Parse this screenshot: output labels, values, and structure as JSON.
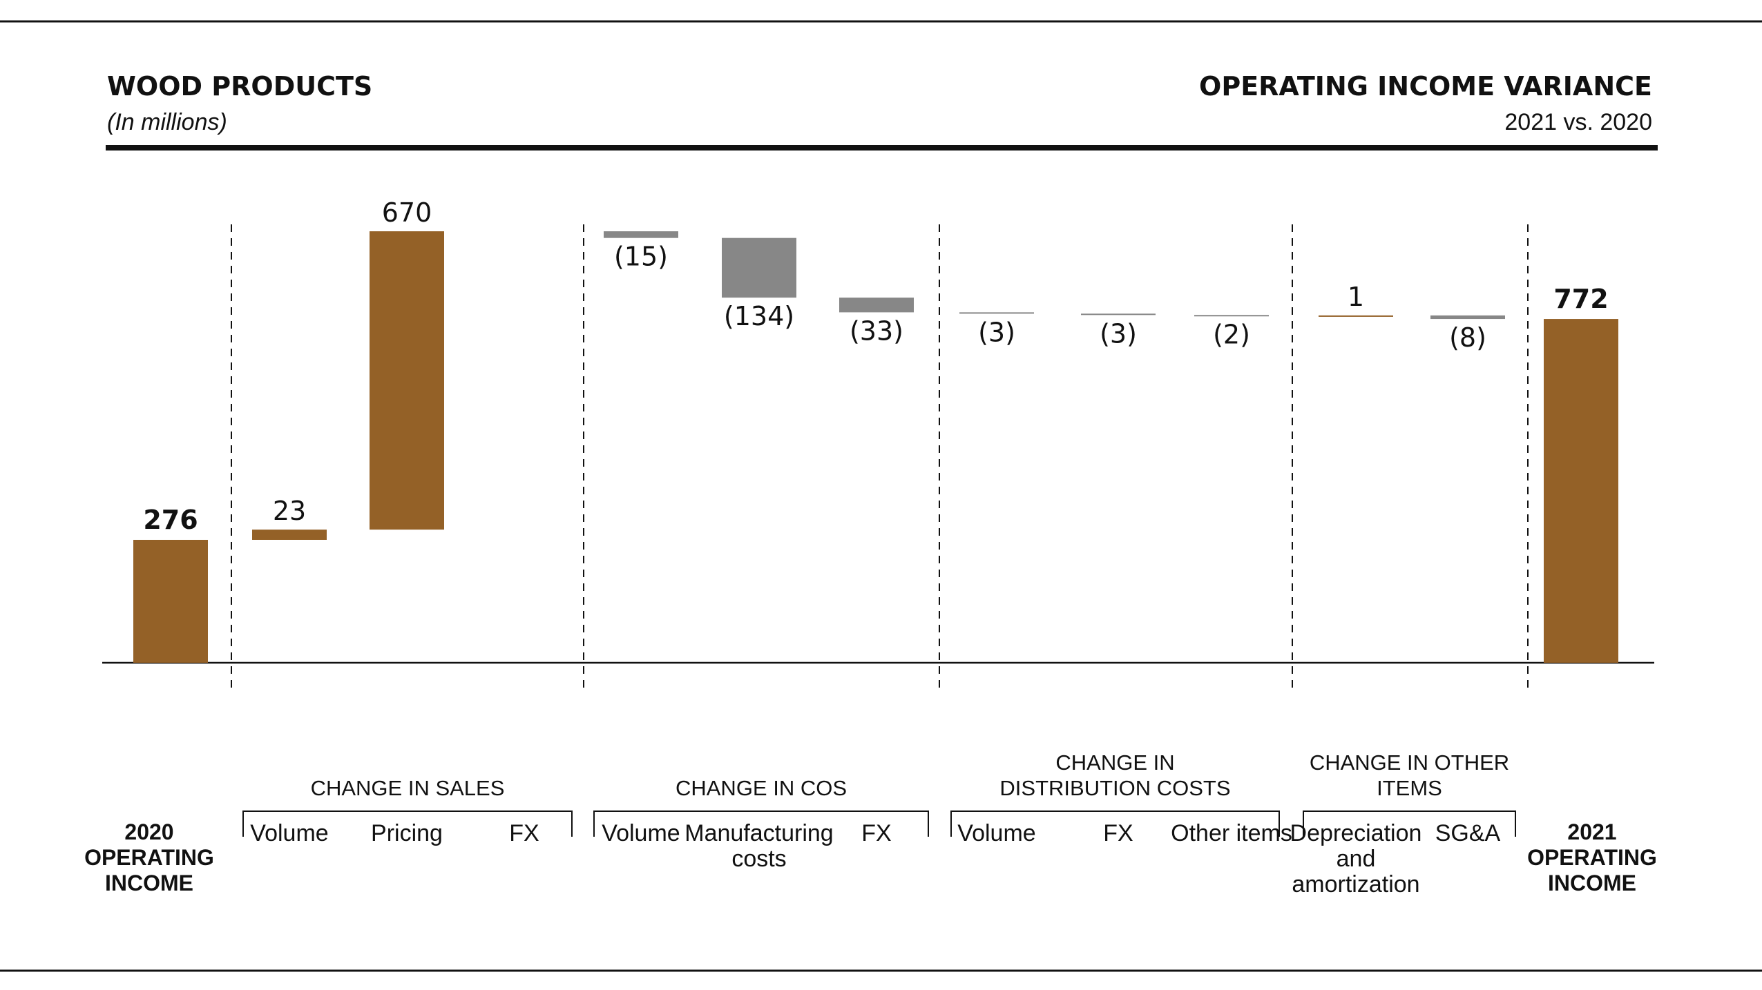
{
  "header": {
    "title": "WOOD PRODUCTS",
    "units": "(In millions)",
    "right_title": "OPERATING INCOME VARIANCE",
    "right_subtitle": "2021 vs. 2020"
  },
  "colors": {
    "positive": "#946127",
    "negative": "#878787",
    "rule": "#111111"
  },
  "chart_data": {
    "type": "bar",
    "subtype": "waterfall",
    "title": "WOOD PRODUCTS",
    "subtitle": "OPERATING INCOME VARIANCE 2021 vs. 2020",
    "unit": "(In millions)",
    "start": {
      "label": "2020 OPERATING INCOME",
      "value": 276,
      "value_label": "276"
    },
    "end": {
      "label": "2021 OPERATING INCOME",
      "value": 772,
      "value_label": "772"
    },
    "groups": [
      {
        "name": "CHANGE IN SALES",
        "items": [
          {
            "label": "Volume",
            "value": 23,
            "value_label": "23"
          },
          {
            "label": "Pricing",
            "value": 670,
            "value_label": "670"
          },
          {
            "label": "FX",
            "value": 0,
            "value_label": ""
          }
        ]
      },
      {
        "name": "CHANGE IN COS",
        "items": [
          {
            "label": "Volume",
            "value": -15,
            "value_label": "(15)"
          },
          {
            "label": "Manufacturing costs",
            "value": -134,
            "value_label": "(134)"
          },
          {
            "label": "FX",
            "value": -33,
            "value_label": "(33)"
          }
        ]
      },
      {
        "name": "CHANGE IN DISTRIBUTION COSTS",
        "items": [
          {
            "label": "Volume",
            "value": -3,
            "value_label": "(3)"
          },
          {
            "label": "FX",
            "value": -3,
            "value_label": "(3)"
          },
          {
            "label": "Other items",
            "value": -2,
            "value_label": "(2)"
          }
        ]
      },
      {
        "name": "CHANGE IN OTHER ITEMS",
        "items": [
          {
            "label": "Depreciation and amortization",
            "value": 1,
            "value_label": "1"
          },
          {
            "label": "SG&A",
            "value": -8,
            "value_label": "(8)"
          }
        ]
      }
    ],
    "ylim": [
      0,
      970
    ],
    "grid": false,
    "legend": "none"
  }
}
